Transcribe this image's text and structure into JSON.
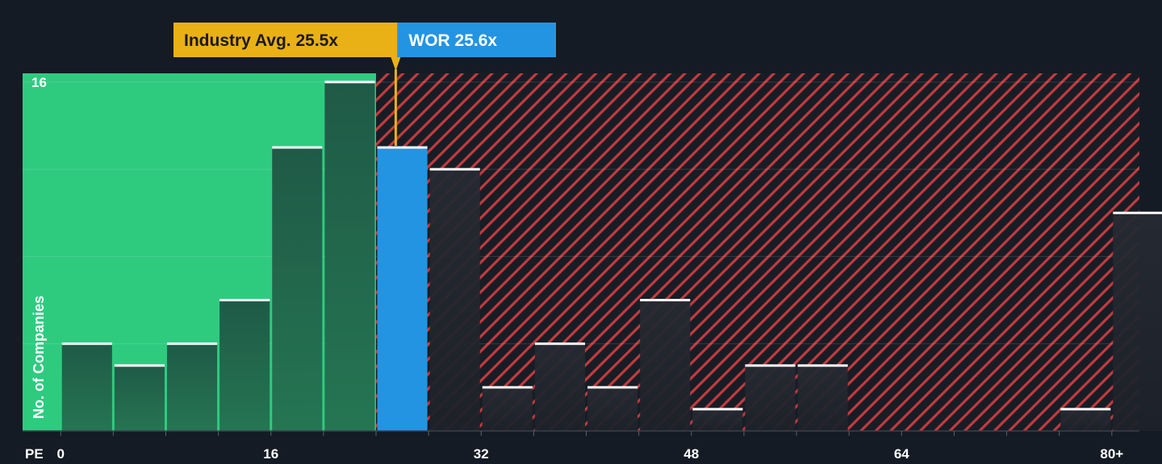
{
  "chart_data": {
    "type": "bar",
    "xlabel": "PE",
    "ylabel": "No. of Companies",
    "x_tick_labels": [
      "0",
      "16",
      "32",
      "48",
      "64",
      "80+"
    ],
    "x_tick_values": [
      0,
      16,
      32,
      48,
      64,
      80
    ],
    "y_tick_labels": [
      "16"
    ],
    "y_tick_values": [
      16
    ],
    "xlim": [
      -2.9,
      82.1
    ],
    "ylim": [
      0,
      16.4
    ],
    "bin_width": 4,
    "bins": [
      {
        "start": 0,
        "value": 4,
        "zone": "below"
      },
      {
        "start": 4,
        "value": 3,
        "zone": "below"
      },
      {
        "start": 8,
        "value": 4,
        "zone": "below"
      },
      {
        "start": 12,
        "value": 6,
        "zone": "below"
      },
      {
        "start": 16,
        "value": 13,
        "zone": "below"
      },
      {
        "start": 20,
        "value": 16,
        "zone": "below"
      },
      {
        "start": 24,
        "value": 13,
        "zone": "company"
      },
      {
        "start": 28,
        "value": 12,
        "zone": "above"
      },
      {
        "start": 32,
        "value": 2,
        "zone": "above"
      },
      {
        "start": 36,
        "value": 4,
        "zone": "above"
      },
      {
        "start": 40,
        "value": 2,
        "zone": "above"
      },
      {
        "start": 44,
        "value": 6,
        "zone": "above"
      },
      {
        "start": 48,
        "value": 1,
        "zone": "above"
      },
      {
        "start": 52,
        "value": 3,
        "zone": "above"
      },
      {
        "start": 56,
        "value": 3,
        "zone": "above"
      },
      {
        "start": 60,
        "value": 0,
        "zone": "above"
      },
      {
        "start": 64,
        "value": 0,
        "zone": "above"
      },
      {
        "start": 68,
        "value": 0,
        "zone": "above"
      },
      {
        "start": 72,
        "value": 0,
        "zone": "above"
      },
      {
        "start": 76,
        "value": 1,
        "zone": "above"
      },
      {
        "start": 80,
        "value": 10,
        "zone": "above"
      }
    ],
    "industry_avg": {
      "label": "Industry Avg. 25.5x",
      "value": 25.5
    },
    "company": {
      "label": "WOR 25.6x",
      "value": 25.6
    },
    "grid": true,
    "colors": {
      "background": "#151b24",
      "below_zone": "#2ecb7f",
      "below_bar_top": "#1f5a47",
      "below_bar_bottom": "#257552",
      "company_bar": "#2394e2",
      "above_zone_base": "#181d25",
      "above_zone_stripe": "#c33a3e",
      "above_bar": "#22262e",
      "bar_cap": "#ffffff",
      "industry_label_bg": "#eab116",
      "industry_label_text": "#1a1a1a",
      "company_label_bg": "#2394e2",
      "company_label_text": "#ffffff",
      "axis_text": "#ffffff"
    }
  }
}
